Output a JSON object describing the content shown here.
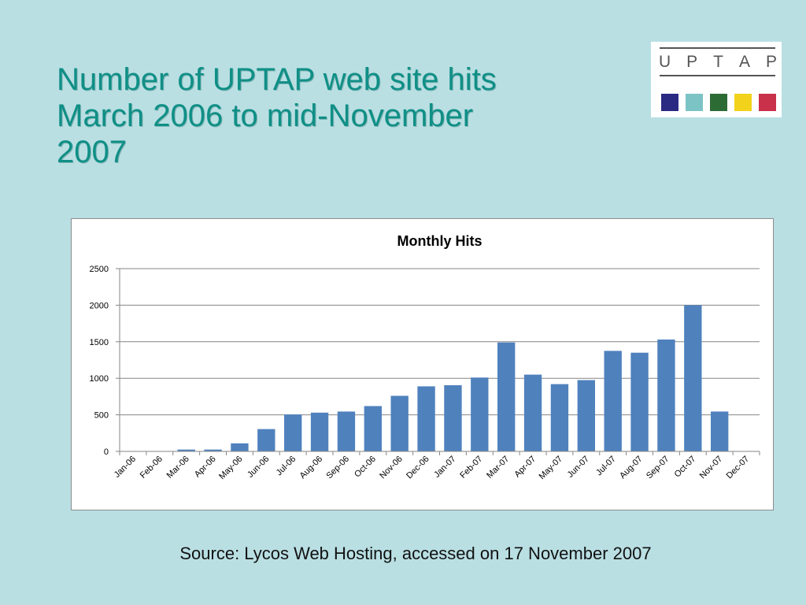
{
  "slide": {
    "title_lines": [
      "Number of UPTAP web site hits",
      "March 2006 to mid-November",
      "2007"
    ],
    "source": "Source:  Lycos Web Hosting, accessed on 17 November 2007"
  },
  "logo": {
    "letters": [
      "U",
      "P",
      "T",
      "A",
      "P"
    ],
    "squares": [
      "#2a2a82",
      "#7cc3c5",
      "#2d6b35",
      "#f2d21a",
      "#c9304a"
    ]
  },
  "colors": {
    "background": "#b9dfe3",
    "title": "#0f8f86",
    "bar": "#4f81bd",
    "gridline": "#868686"
  },
  "chart_data": {
    "type": "bar",
    "title": "Monthly Hits",
    "xlabel": "",
    "ylabel": "",
    "ylim": [
      0,
      2500
    ],
    "yticks": [
      0,
      500,
      1000,
      1500,
      2000,
      2500
    ],
    "grid": true,
    "legend": "none",
    "categories": [
      "Jan-06",
      "Feb-06",
      "Mar-06",
      "Apr-06",
      "May-06",
      "Jun-06",
      "Jul-06",
      "Aug-06",
      "Sep-06",
      "Oct-06",
      "Nov-06",
      "Dec-06",
      "Jan-07",
      "Feb-07",
      "Mar-07",
      "Apr-07",
      "May-07",
      "Jun-07",
      "Jul-07",
      "Aug-07",
      "Sep-07",
      "Oct-07",
      "Nov-07",
      "Dec-07"
    ],
    "values": [
      0,
      0,
      25,
      25,
      110,
      305,
      505,
      530,
      545,
      620,
      760,
      890,
      905,
      1010,
      1490,
      1050,
      920,
      975,
      1375,
      1350,
      1530,
      2000,
      545,
      0
    ]
  }
}
